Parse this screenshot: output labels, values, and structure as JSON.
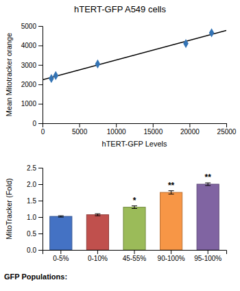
{
  "chart_data": [
    {
      "type": "scatter",
      "title": "hTERT-GFP A549 cells",
      "xlabel": "hTERT-GFP Levels",
      "ylabel": "Mean Mitotracker orange",
      "series": [
        {
          "type": "line",
          "color": "#000000",
          "x": [
            0,
            25000
          ],
          "values": [
            2232.4276,
            4773.8718
          ]
        },
        {
          "type": "scatter",
          "color": "#3474b5",
          "marker": "diamond",
          "x": [
            1200,
            1800,
            7500,
            19500,
            23000
          ],
          "values": [
            2300,
            2450,
            3050,
            4100,
            4650
          ]
        }
      ],
      "xlim": [
        0,
        25000
      ],
      "ylim": [
        0,
        5000
      ],
      "xticks": [
        0,
        5000,
        10000,
        15000,
        20000,
        25000
      ],
      "yticks": [
        0,
        1000,
        2000,
        3000,
        4000,
        5000
      ]
    },
    {
      "type": "bar",
      "xlabel": "GFP Populations:",
      "ylabel": "MitoTracker (Fold)",
      "categories": [
        "0-5%",
        "0-10%",
        "45-55%",
        "90-100%",
        "95-100%"
      ],
      "values": [
        1.02,
        1.07,
        1.3,
        1.75,
        2.0
      ],
      "errors": [
        0.02,
        0.03,
        0.04,
        0.05,
        0.04
      ],
      "colors": [
        "#4472c4",
        "#c0504d",
        "#9bbb59",
        "#f79646",
        "#8064a2"
      ],
      "annotations": [
        null,
        null,
        "*",
        "**",
        "**"
      ],
      "ylim": [
        0,
        2.5
      ],
      "yticks": [
        {
          "value": 0,
          "label": "0.0"
        },
        {
          "value": 0.5,
          "label": "0.5"
        },
        {
          "value": 1.0,
          "label": "1.0"
        },
        {
          "value": 1.5,
          "label": "1.5"
        },
        {
          "value": 2.0,
          "label": "2.0"
        },
        {
          "value": 2.5,
          "label": "2.5"
        }
      ]
    }
  ]
}
